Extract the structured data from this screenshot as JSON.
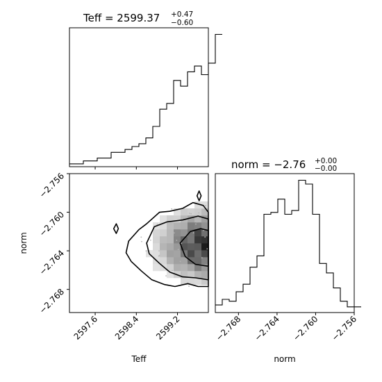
{
  "chart_data": [
    {
      "panel": "teff-histogram",
      "type": "bar",
      "title": {
        "prefix": "Teff = ",
        "value": "2599.37",
        "plus": "+0.47",
        "minus": "−0.60"
      },
      "x": {
        "range": [
          2597.1,
          2599.8
        ],
        "ticks": [
          2597.6,
          2598.4,
          2599.2
        ]
      },
      "bin_width": 0.135,
      "values": [
        1,
        1,
        2,
        2,
        3,
        3,
        5,
        5,
        6,
        7,
        8,
        10,
        14,
        20,
        22,
        30,
        28,
        33,
        35,
        32,
        36,
        46
      ]
    },
    {
      "panel": "norm-histogram",
      "type": "bar",
      "title": {
        "prefix": "norm = ",
        "value": "−2.76",
        "plus": "+0.00",
        "minus": "−0.00"
      },
      "x": {
        "range": [
          -2.7704,
          -2.756
        ],
        "ticks": [
          -2.768,
          -2.764,
          -2.76,
          -2.756
        ],
        "tick_labels": [
          "−2.768",
          "−2.764",
          "−2.760",
          "−2.756"
        ],
        "label": "norm"
      },
      "bin_width": 0.00072,
      "values": [
        4,
        7,
        6,
        11,
        15,
        24,
        30,
        52,
        53,
        60,
        52,
        54,
        70,
        68,
        52,
        26,
        21,
        13,
        6,
        3,
        3
      ]
    },
    {
      "panel": "teff-norm-2d",
      "type": "heatmap",
      "x": {
        "range": [
          2597.1,
          2599.8
        ],
        "ticks": [
          2597.6,
          2598.4,
          2599.2
        ],
        "tick_labels": [
          "2597.6",
          "2598.4",
          "2599.2"
        ],
        "label": "Teff"
      },
      "y": {
        "range": [
          -2.7704,
          -2.756
        ],
        "ticks": [
          -2.768,
          -2.764,
          -2.76,
          -2.756
        ],
        "tick_labels": [
          "−2.768",
          "−2.764",
          "−2.760",
          "−2.756"
        ],
        "label": "norm"
      },
      "density_peak": [
        2599.75,
        -2.7634
      ],
      "contours": [
        [
          [
            2598.25,
            -2.763
          ],
          [
            2598.45,
            -2.7618
          ],
          [
            2598.6,
            -2.7612
          ],
          [
            2598.85,
            -2.76
          ],
          [
            2599.05,
            -2.7599
          ],
          [
            2599.3,
            -2.7596
          ],
          [
            2599.5,
            -2.759
          ],
          [
            2599.7,
            -2.7593
          ],
          [
            2599.8,
            -2.76
          ],
          [
            2599.8,
            -2.7677
          ],
          [
            2599.6,
            -2.7677
          ],
          [
            2599.4,
            -2.7674
          ],
          [
            2599.15,
            -2.7677
          ],
          [
            2598.95,
            -2.7675
          ],
          [
            2598.7,
            -2.767
          ],
          [
            2598.5,
            -2.7661
          ],
          [
            2598.3,
            -2.7651
          ],
          [
            2598.2,
            -2.7642
          ],
          [
            2598.25,
            -2.763
          ]
        ],
        [
          [
            2598.6,
            -2.7632
          ],
          [
            2598.75,
            -2.7615
          ],
          [
            2599.0,
            -2.761
          ],
          [
            2599.3,
            -2.7608
          ],
          [
            2599.6,
            -2.7604
          ],
          [
            2599.8,
            -2.7607
          ],
          [
            2599.8,
            -2.767
          ],
          [
            2599.55,
            -2.7668
          ],
          [
            2599.3,
            -2.7667
          ],
          [
            2599.05,
            -2.7662
          ],
          [
            2598.85,
            -2.7653
          ],
          [
            2598.65,
            -2.7643
          ],
          [
            2598.6,
            -2.7632
          ]
        ],
        [
          [
            2599.25,
            -2.7632
          ],
          [
            2599.45,
            -2.762
          ],
          [
            2599.65,
            -2.7617
          ],
          [
            2599.8,
            -2.7619
          ],
          [
            2599.8,
            -2.7656
          ],
          [
            2599.55,
            -2.7654
          ],
          [
            2599.35,
            -2.7646
          ],
          [
            2599.25,
            -2.7632
          ]
        ],
        [
          [
            2597.96,
            -2.7617
          ],
          [
            2598.01,
            -2.7612
          ],
          [
            2598.05,
            -2.7617
          ],
          [
            2598.01,
            -2.7622
          ],
          [
            2597.96,
            -2.7617
          ]
        ],
        [
          [
            2599.58,
            -2.7583
          ],
          [
            2599.62,
            -2.7578
          ],
          [
            2599.66,
            -2.7583
          ],
          [
            2599.62,
            -2.7588
          ],
          [
            2599.58,
            -2.7583
          ]
        ]
      ]
    }
  ]
}
